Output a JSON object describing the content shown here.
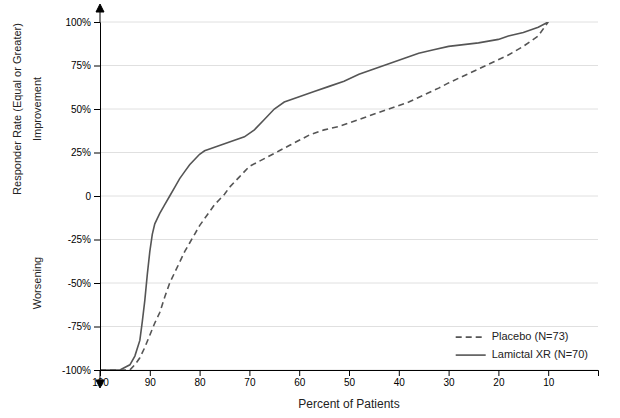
{
  "chart_data": {
    "type": "line",
    "xlabel": "Percent of Patients",
    "annotations": [
      "Responder Rate (Equal or Greater)",
      "Improvement",
      "Worsening"
    ],
    "xlim": [
      100,
      0
    ],
    "ylim": [
      -100,
      100
    ],
    "xticks": [
      100,
      90,
      80,
      70,
      60,
      50,
      40,
      30,
      20,
      10
    ],
    "yticks": [
      {
        "value": -100,
        "label": "-100%"
      },
      {
        "value": -75,
        "label": "-75%"
      },
      {
        "value": -50,
        "label": "-50%"
      },
      {
        "value": -25,
        "label": "-25%"
      },
      0,
      {
        "value": 25,
        "label": "25%"
      },
      {
        "value": 50,
        "label": "50%"
      },
      {
        "value": 75,
        "label": "75%"
      },
      {
        "value": 100,
        "label": "100%"
      }
    ],
    "grid": true,
    "legend": "lower right",
    "series": [
      {
        "name": "Placebo (N=73)",
        "color": "#555555",
        "line_style": "dashed",
        "x": [
          100,
          97,
          96,
          95,
          94,
          93,
          92,
          91,
          90,
          89,
          88,
          87,
          86,
          85,
          84,
          83,
          82,
          81,
          80,
          79,
          78,
          77,
          76,
          75,
          74,
          73,
          72,
          71,
          70,
          68,
          66,
          64,
          62,
          60,
          58,
          55,
          52,
          50,
          47,
          44,
          41,
          38,
          35,
          32,
          30,
          27,
          24,
          21,
          18,
          15,
          12,
          10
        ],
        "values": [
          -100,
          -100,
          -100,
          -100,
          -100,
          -97,
          -93,
          -87,
          -80,
          -73,
          -67,
          -58,
          -50,
          -44,
          -38,
          -32,
          -27,
          -22,
          -17,
          -13,
          -9,
          -5,
          -2,
          1,
          5,
          8,
          11,
          14,
          17,
          20,
          23,
          26,
          29,
          32,
          35,
          38,
          40,
          42,
          45,
          48,
          51,
          54,
          58,
          62,
          65,
          69,
          73,
          77,
          81,
          86,
          92,
          100
        ]
      },
      {
        "name": "Lamictal XR (N=70)",
        "color": "#555555",
        "line_style": "solid",
        "x": [
          100,
          96,
          94,
          93,
          92,
          91.5,
          91,
          90.5,
          90,
          89.5,
          89,
          88,
          87,
          86,
          85,
          84,
          83,
          82,
          81,
          80,
          79,
          78,
          77,
          76,
          75,
          73,
          71,
          69,
          67,
          65,
          63,
          60,
          57,
          54,
          51,
          48,
          45,
          42,
          39,
          36,
          33,
          30,
          27,
          24,
          22,
          20,
          18,
          15,
          12,
          10
        ],
        "values": [
          -100,
          -100,
          -97,
          -92,
          -83,
          -72,
          -60,
          -45,
          -32,
          -22,
          -16,
          -10,
          -5,
          0,
          5,
          10,
          14,
          18,
          21,
          24,
          26,
          27,
          28,
          29,
          30,
          32,
          34,
          38,
          44,
          50,
          54,
          57,
          60,
          63,
          66,
          70,
          73,
          76,
          79,
          82,
          84,
          86,
          87,
          88,
          89,
          90,
          92,
          94,
          97,
          100
        ]
      }
    ]
  }
}
